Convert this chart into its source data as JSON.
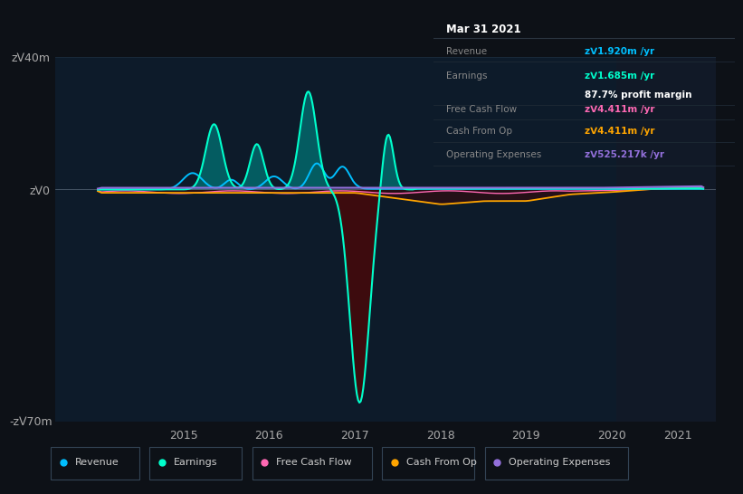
{
  "bg_color": "#0d1117",
  "plot_bg_color": "#0d1b2a",
  "right_panel_color": "#111927",
  "title": "Mar 31 2021",
  "ylabel_top": "zᐯ40m",
  "ylabel_bottom": "-zᐯ70m",
  "ylabel_zero": "zᐯ0",
  "legend": [
    {
      "label": "Revenue",
      "color": "#00bfff"
    },
    {
      "label": "Earnings",
      "color": "#00ffcc"
    },
    {
      "label": "Free Cash Flow",
      "color": "#ff69b4"
    },
    {
      "label": "Cash From Op",
      "color": "#ffa500"
    },
    {
      "label": "Operating Expenses",
      "color": "#9370db"
    }
  ],
  "info_rows": [
    {
      "label": "Revenue",
      "value": "zᐯ1.920m /yr",
      "color": "#00bfff",
      "extra": null
    },
    {
      "label": "Earnings",
      "value": "zᐯ1.685m /yr",
      "color": "#00ffcc",
      "extra": "87.7% profit margin"
    },
    {
      "label": "Free Cash Flow",
      "value": "zᐯ4.411m /yr",
      "color": "#ff69b4",
      "extra": null
    },
    {
      "label": "Cash From Op",
      "value": "zᐯ4.411m /yr",
      "color": "#ffa500",
      "extra": null
    },
    {
      "label": "Operating Expenses",
      "value": "zᐯ525.217k /yr",
      "color": "#9370db",
      "extra": null
    }
  ],
  "ylim": [
    -70,
    40
  ],
  "xlim_main_start": 2013.5,
  "xlim_main_end": 2020.05,
  "xlim_right_start": 2020.05,
  "xlim_right_end": 2021.6,
  "xtick_main": [
    2015,
    2016,
    2017,
    2018,
    2019,
    2020
  ],
  "xtick_right": [
    2021
  ]
}
